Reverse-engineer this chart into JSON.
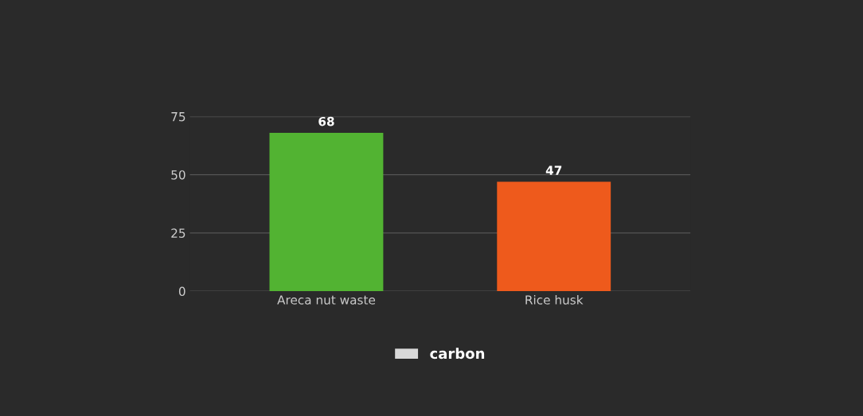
{
  "chart_data": {
    "type": "bar",
    "categories": [
      "Areca nut waste",
      "Rice husk"
    ],
    "series": [
      {
        "name": "carbon",
        "color": "#d9d9d9",
        "colors": [
          "#52b332",
          "#ee5a1c"
        ],
        "values": [
          68,
          47
        ]
      }
    ],
    "ylim": [
      0,
      75
    ],
    "yticks": [
      0,
      25,
      50,
      75
    ],
    "grid": "y",
    "legend": "bottom",
    "data_labels": true
  }
}
